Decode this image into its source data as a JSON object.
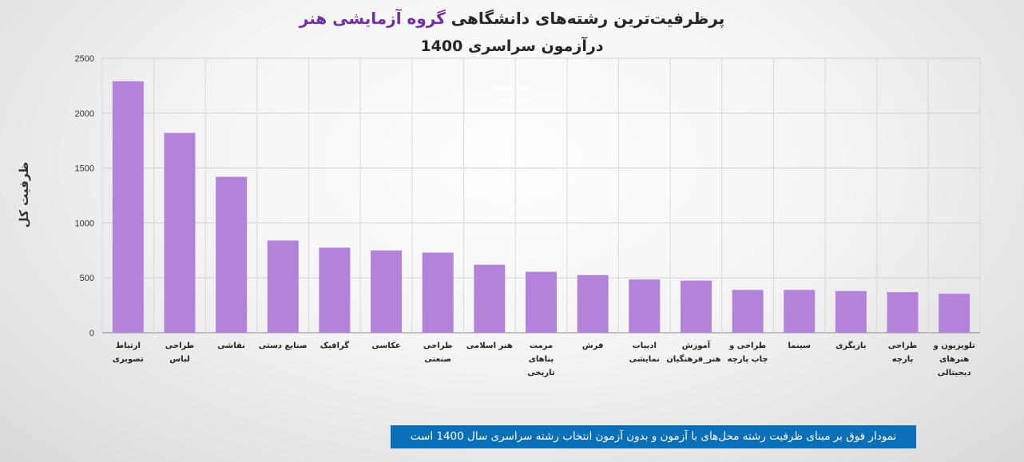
{
  "chart_data": {
    "type": "bar",
    "title_main": "پرظرفیت‌ترین رشته‌های دانشگاهی",
    "title_highlight": "گروه آزمایشی هنر",
    "subtitle": "درآزمون سراسری 1400",
    "ylabel": "ظرفیت کل",
    "ylim": [
      0,
      2500
    ],
    "yticks": [
      0,
      500,
      1000,
      1500,
      2000,
      2500
    ],
    "grid": true,
    "bar_color": "#b383d9",
    "categories": [
      "ارتباط تصویری",
      "طراحی لباس",
      "نقاشی",
      "صنایع دستی",
      "گرافیک",
      "عکاسی",
      "طراحی صنعتی",
      "هنر اسلامی",
      "مرمت بناهای تاریخی",
      "فرش",
      "ادبیات نمایشی",
      "آموزش هنر_فرهنگیان",
      "طراحی و چاپ پارچه",
      "سینما",
      "بازیگری",
      "طراحی پارچه",
      "تلویزیون و هنرهای دیجیتالی"
    ],
    "values": [
      2290,
      1820,
      1420,
      840,
      775,
      750,
      730,
      620,
      555,
      525,
      485,
      475,
      390,
      390,
      380,
      370,
      355
    ]
  },
  "footnote": "نمودار فوق بر مبنای ظرفیت رشته محل‌های با آزمون و بدون آزمون انتخاب رشته سراسری سال 1400 است"
}
